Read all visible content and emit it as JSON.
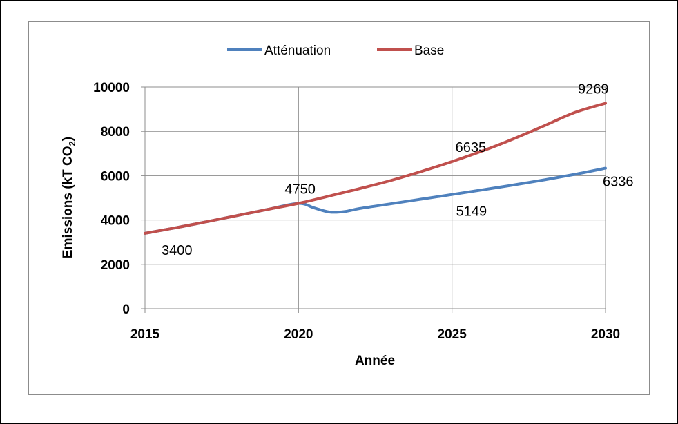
{
  "chart_data": {
    "type": "line",
    "title": "",
    "xlabel": "Année",
    "ylabel": "Emissions (kT CO",
    "ylabel_subscript": "2",
    "ylabel_suffix": ")",
    "xlim": [
      2015,
      2030
    ],
    "ylim": [
      0,
      10000
    ],
    "x_ticks": [
      2015,
      2020,
      2025,
      2030
    ],
    "y_ticks": [
      0,
      2000,
      4000,
      6000,
      8000,
      10000
    ],
    "grid": true,
    "legend_position": "top",
    "series": [
      {
        "name": "Atténuation",
        "color": "#4f81bd",
        "x": [
          2015,
          2016,
          2017,
          2018,
          2019,
          2020,
          2020.5,
          2021,
          2021.5,
          2022,
          2023,
          2024,
          2025,
          2026,
          2027,
          2028,
          2029,
          2030
        ],
        "y": [
          3400,
          3650,
          3920,
          4200,
          4480,
          4750,
          4550,
          4360,
          4380,
          4520,
          4730,
          4940,
          5149,
          5360,
          5580,
          5810,
          6060,
          6336
        ]
      },
      {
        "name": "Base",
        "color": "#c0504d",
        "x": [
          2015,
          2016,
          2017,
          2018,
          2019,
          2020,
          2021,
          2022,
          2023,
          2024,
          2025,
          2026,
          2027,
          2028,
          2029,
          2030
        ],
        "y": [
          3400,
          3650,
          3920,
          4200,
          4480,
          4750,
          5080,
          5420,
          5780,
          6190,
          6635,
          7120,
          7660,
          8250,
          8850,
          9269
        ]
      }
    ],
    "annotations": [
      {
        "text": "3400",
        "x": 2015,
        "y": 3400
      },
      {
        "text": "4750",
        "x": 2020,
        "y": 4750
      },
      {
        "text": "6635",
        "x": 2025,
        "y": 6635
      },
      {
        "text": "5149",
        "x": 2025,
        "y": 5149
      },
      {
        "text": "9269",
        "x": 2030,
        "y": 9269
      },
      {
        "text": "6336",
        "x": 2030,
        "y": 6336
      }
    ]
  }
}
